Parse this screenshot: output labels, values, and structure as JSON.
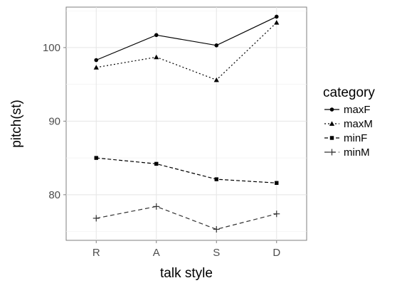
{
  "chart_data": {
    "type": "line",
    "title": "",
    "xlabel": "talk style",
    "ylabel": "pitch(st)",
    "categories": [
      "R",
      "A",
      "S",
      "D"
    ],
    "ylim": [
      73.8,
      105.5
    ],
    "yticks": [
      80,
      90,
      100
    ],
    "grid": true,
    "legend": {
      "title": "category",
      "placement": "right"
    },
    "series": [
      {
        "name": "maxF",
        "values": [
          98.3,
          101.7,
          100.3,
          104.2
        ],
        "marker": "circle",
        "dash": "solid",
        "color": "#000000"
      },
      {
        "name": "maxM",
        "values": [
          97.3,
          98.7,
          95.6,
          103.4
        ],
        "marker": "triangle",
        "dash": "dotted",
        "color": "#000000"
      },
      {
        "name": "minF",
        "values": [
          85.0,
          84.2,
          82.1,
          81.6
        ],
        "marker": "square",
        "dash": "dashed",
        "color": "#000000"
      },
      {
        "name": "minM",
        "values": [
          76.8,
          78.4,
          75.3,
          77.4
        ],
        "marker": "plus",
        "dash": "longdash",
        "color": "#333333"
      }
    ]
  }
}
